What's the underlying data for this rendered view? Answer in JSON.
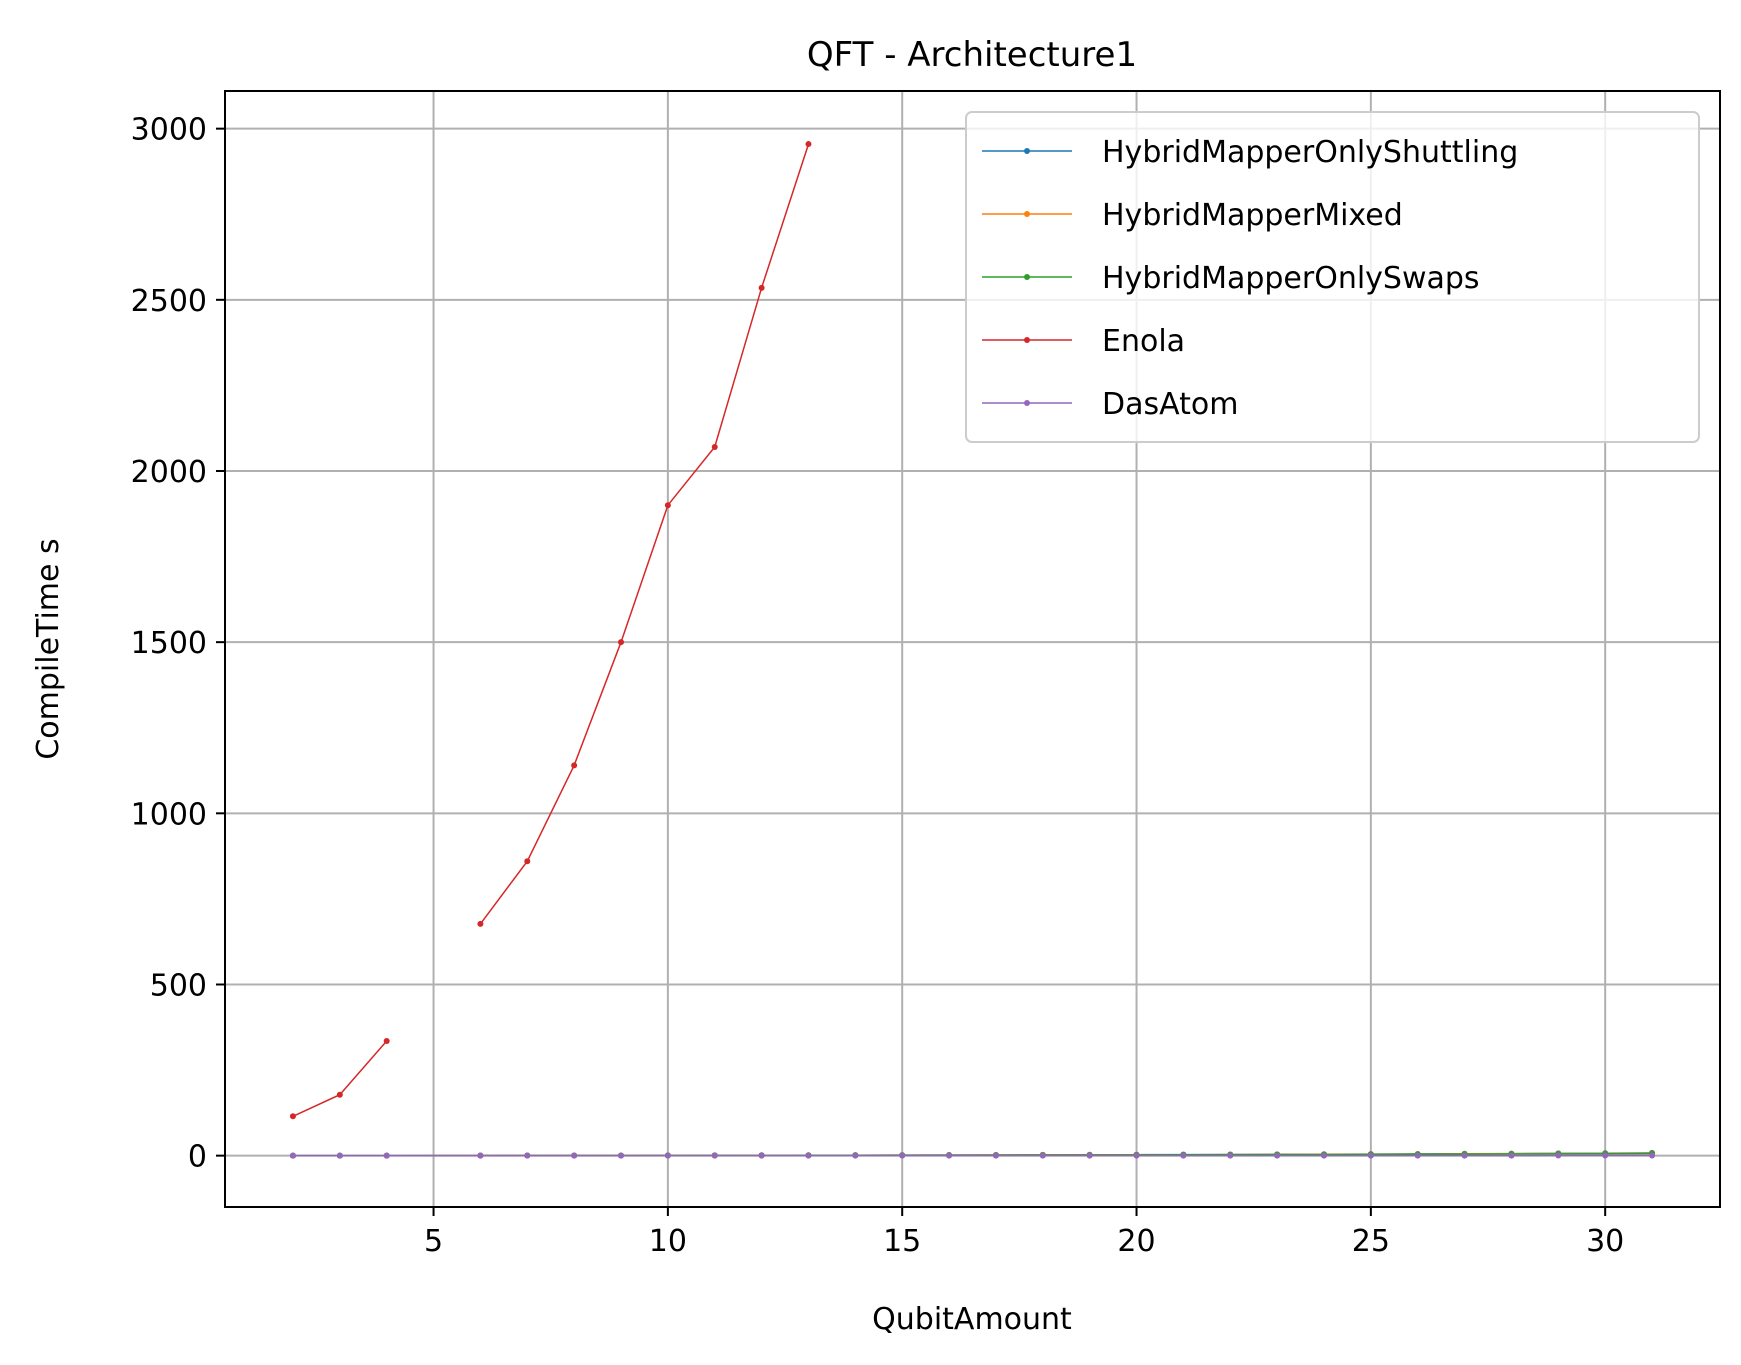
{
  "chart_data": {
    "type": "line",
    "title": "QFT - Architecture1",
    "xlabel": "QubitAmount",
    "ylabel": "CompileTime s",
    "xlim": [
      0.55,
      32.45
    ],
    "ylim": [
      -150,
      3110
    ],
    "xticks": [
      5,
      10,
      15,
      20,
      25,
      30
    ],
    "yticks": [
      0,
      500,
      1000,
      1500,
      2000,
      2500,
      3000
    ],
    "grid": true,
    "legend_position": "top-right",
    "series": [
      {
        "name": "HybridMapperOnlyShuttling",
        "color": "#1f77b4",
        "points": [
          [
            2,
            0.1
          ],
          [
            3,
            0.1
          ],
          [
            4,
            0.2
          ],
          [
            6,
            0.3
          ],
          [
            7,
            0.4
          ],
          [
            8,
            0.5
          ],
          [
            9,
            0.6
          ],
          [
            10,
            0.7
          ],
          [
            11,
            0.9
          ],
          [
            12,
            1.0
          ],
          [
            13,
            1.2
          ],
          [
            14,
            1.4
          ],
          [
            15,
            1.6
          ],
          [
            16,
            1.8
          ],
          [
            17,
            2.0
          ],
          [
            18,
            2.3
          ],
          [
            19,
            2.5
          ],
          [
            20,
            2.8
          ],
          [
            21,
            3.1
          ],
          [
            22,
            3.4
          ],
          [
            23,
            3.8
          ],
          [
            24,
            4.2
          ],
          [
            25,
            4.6
          ],
          [
            26,
            5.0
          ],
          [
            27,
            5.5
          ],
          [
            28,
            6.0
          ],
          [
            29,
            6.6
          ],
          [
            30,
            7.2
          ],
          [
            31,
            8.0
          ]
        ]
      },
      {
        "name": "HybridMapperMixed",
        "color": "#ff7f0e",
        "points": [
          [
            2,
            0.1
          ],
          [
            3,
            0.1
          ],
          [
            4,
            0.2
          ],
          [
            6,
            0.3
          ],
          [
            7,
            0.4
          ],
          [
            8,
            0.5
          ],
          [
            9,
            0.6
          ],
          [
            10,
            0.7
          ],
          [
            11,
            0.8
          ],
          [
            12,
            0.9
          ],
          [
            13,
            1.1
          ],
          [
            14,
            1.3
          ],
          [
            15,
            1.5
          ],
          [
            16,
            1.7
          ],
          [
            17,
            1.9
          ],
          [
            18,
            2.1
          ],
          [
            19,
            2.3
          ],
          [
            20,
            2.6
          ],
          [
            21,
            2.9
          ],
          [
            22,
            3.2
          ],
          [
            23,
            3.5
          ],
          [
            24,
            3.8
          ],
          [
            25,
            4.2
          ],
          [
            26,
            4.6
          ],
          [
            27,
            5.0
          ],
          [
            28,
            5.4
          ],
          [
            29,
            5.9
          ],
          [
            30,
            6.4
          ],
          [
            31,
            7.0
          ]
        ]
      },
      {
        "name": "HybridMapperOnlySwaps",
        "color": "#2ca02c",
        "points": [
          [
            2,
            0.1
          ],
          [
            3,
            0.1
          ],
          [
            4,
            0.1
          ],
          [
            6,
            0.2
          ],
          [
            7,
            0.3
          ],
          [
            8,
            0.4
          ],
          [
            9,
            0.5
          ],
          [
            10,
            0.6
          ],
          [
            11,
            0.7
          ],
          [
            12,
            0.8
          ],
          [
            13,
            0.9
          ],
          [
            14,
            1.1
          ],
          [
            15,
            1.2
          ],
          [
            16,
            1.4
          ],
          [
            17,
            1.6
          ],
          [
            18,
            1.8
          ],
          [
            19,
            2.0
          ],
          [
            20,
            2.2
          ],
          [
            21,
            2.5
          ],
          [
            22,
            2.7
          ],
          [
            23,
            3.0
          ],
          [
            24,
            3.3
          ],
          [
            25,
            3.6
          ],
          [
            26,
            3.9
          ],
          [
            27,
            4.3
          ],
          [
            28,
            4.7
          ],
          [
            29,
            5.1
          ],
          [
            30,
            5.6
          ],
          [
            31,
            6.1
          ]
        ]
      },
      {
        "name": "Enola",
        "color": "#d62728",
        "points": [
          [
            2,
            115
          ],
          [
            3,
            178
          ],
          [
            4,
            335
          ]
        ],
        "points2": [
          [
            6,
            677
          ],
          [
            7,
            860
          ],
          [
            8,
            1140
          ],
          [
            9,
            1500
          ],
          [
            10,
            1900
          ],
          [
            11,
            2070
          ],
          [
            12,
            2535
          ],
          [
            13,
            2955
          ]
        ]
      },
      {
        "name": "DasAtom",
        "color": "#9467bd",
        "points": [
          [
            2,
            0.0
          ],
          [
            3,
            0.0
          ],
          [
            4,
            0.0
          ],
          [
            6,
            0.0
          ],
          [
            7,
            0.0
          ],
          [
            8,
            0.0
          ],
          [
            9,
            0.0
          ],
          [
            10,
            0.1
          ],
          [
            11,
            0.1
          ],
          [
            12,
            0.1
          ],
          [
            13,
            0.1
          ],
          [
            14,
            0.1
          ],
          [
            15,
            0.1
          ],
          [
            16,
            0.1
          ],
          [
            17,
            0.1
          ],
          [
            18,
            0.1
          ],
          [
            19,
            0.1
          ],
          [
            20,
            0.1
          ],
          [
            21,
            0.1
          ],
          [
            22,
            0.2
          ],
          [
            23,
            0.2
          ],
          [
            24,
            0.2
          ],
          [
            25,
            0.2
          ],
          [
            26,
            0.2
          ],
          [
            27,
            0.2
          ],
          [
            28,
            0.2
          ],
          [
            29,
            0.3
          ],
          [
            30,
            0.3
          ],
          [
            31,
            0.3
          ]
        ]
      }
    ]
  }
}
